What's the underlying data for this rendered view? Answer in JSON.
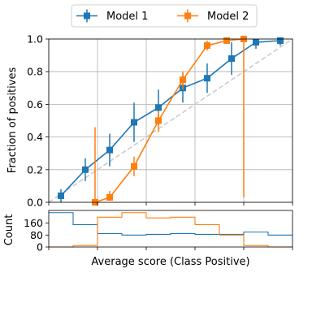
{
  "chart_data": [
    {
      "type": "line",
      "xlabel": "",
      "ylabel": "Fraction of positives",
      "xlim": [
        0,
        1
      ],
      "ylim": [
        0,
        1
      ],
      "grid": true,
      "legend_position": "top-center",
      "y_ticks": [
        "0.0",
        "0.2",
        "0.4",
        "0.6",
        "0.8",
        "1.0"
      ],
      "reference_line": {
        "style": "dashed",
        "color": "#cccccc",
        "from": [
          0,
          0
        ],
        "to": [
          1,
          1
        ]
      },
      "series": [
        {
          "name": "Model 1",
          "color": "#1f77b4",
          "x": [
            0.05,
            0.15,
            0.25,
            0.35,
            0.45,
            0.55,
            0.65,
            0.75,
            0.85,
            0.95
          ],
          "y": [
            0.04,
            0.2,
            0.32,
            0.49,
            0.58,
            0.7,
            0.76,
            0.88,
            0.98,
            0.99
          ],
          "err": [
            0.04,
            0.07,
            0.1,
            0.12,
            0.11,
            0.09,
            0.09,
            0.1,
            0.04,
            0.03
          ]
        },
        {
          "name": "Model 2",
          "color": "#ff7f0e",
          "x": [
            0.19,
            0.25,
            0.35,
            0.45,
            0.55,
            0.65,
            0.73,
            0.8
          ],
          "y": [
            0.0,
            0.03,
            0.22,
            0.5,
            0.75,
            0.96,
            0.99,
            1.0
          ],
          "err_low": [
            0.0,
            0.02,
            0.06,
            0.07,
            0.06,
            0.03,
            0.02,
            0.97
          ],
          "err_high": [
            0.46,
            0.04,
            0.06,
            0.06,
            0.05,
            0.03,
            0.01,
            0.0
          ]
        }
      ]
    },
    {
      "type": "histogram",
      "xlabel": "Average score (Class Positive)",
      "ylabel": "Count",
      "ylim": [
        0,
        245
      ],
      "y_ticks": [
        "0",
        "80",
        "160"
      ],
      "bins": [
        0,
        0.1,
        0.2,
        0.3,
        0.4,
        0.5,
        0.6,
        0.7,
        0.8,
        0.9,
        1.0
      ],
      "series": [
        {
          "name": "Model 1",
          "color": "#1f77b4",
          "counts": [
            230,
            150,
            90,
            80,
            85,
            90,
            85,
            85,
            100,
            80
          ]
        },
        {
          "name": "Model 2",
          "color": "#ff7f0e",
          "counts": [
            0,
            10,
            200,
            230,
            195,
            200,
            150,
            80,
            10,
            0
          ]
        }
      ]
    }
  ]
}
